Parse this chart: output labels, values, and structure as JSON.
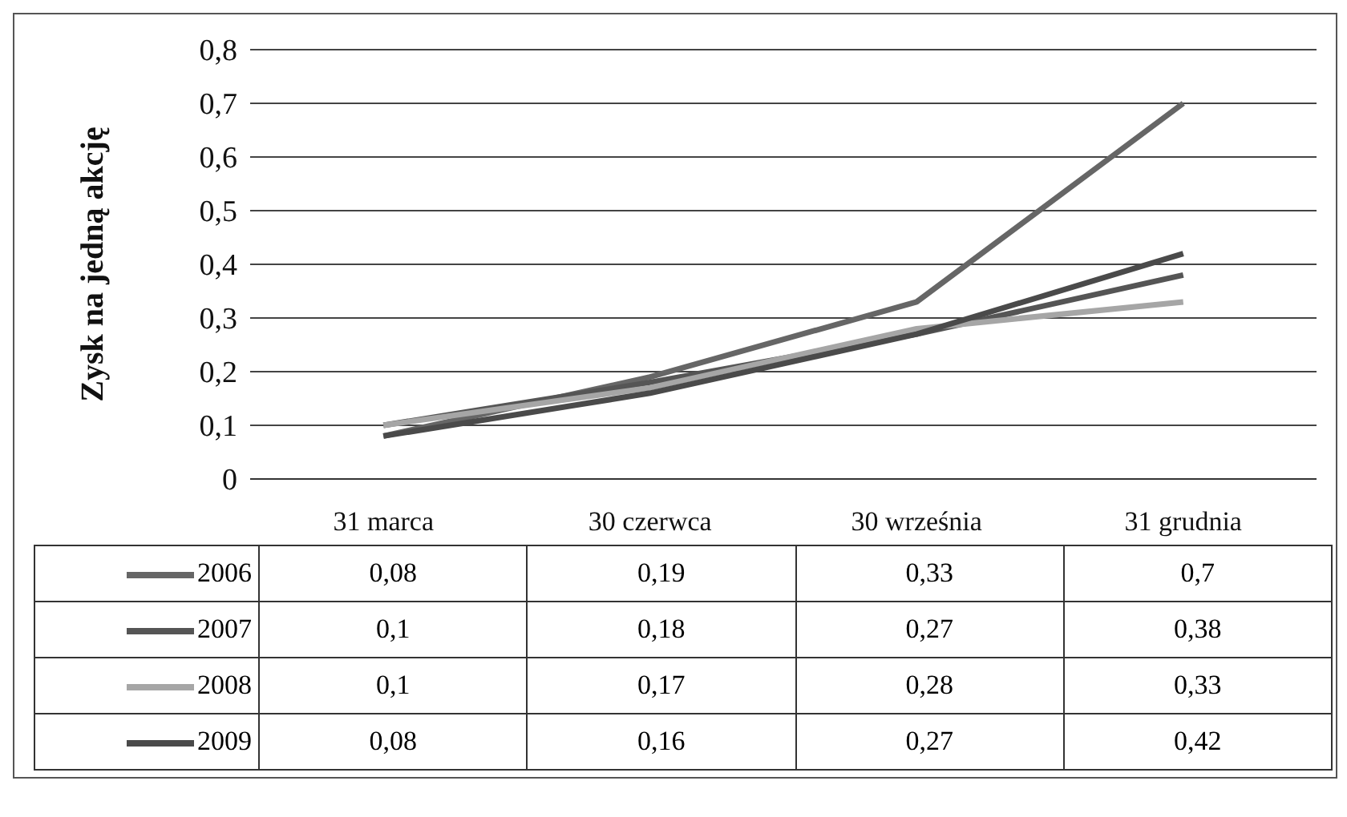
{
  "chart_data": {
    "type": "line",
    "ylabel": "Zysk na jedną akcję",
    "categories": [
      "31 marca",
      "30 czerwca",
      "30 września",
      "31 grudnia"
    ],
    "series": [
      {
        "name": "2006",
        "color": "#666666",
        "values": [
          0.08,
          0.19,
          0.33,
          0.7
        ],
        "value_labels": [
          "0,08",
          "0,19",
          "0,33",
          "0,7"
        ]
      },
      {
        "name": "2007",
        "color": "#555555",
        "values": [
          0.1,
          0.18,
          0.27,
          0.38
        ],
        "value_labels": [
          "0,1",
          "0,18",
          "0,27",
          "0,38"
        ]
      },
      {
        "name": "2008",
        "color": "#a6a6a6",
        "values": [
          0.1,
          0.17,
          0.28,
          0.33
        ],
        "value_labels": [
          "0,1",
          "0,17",
          "0,28",
          "0,33"
        ]
      },
      {
        "name": "2009",
        "color": "#4a4a4a",
        "values": [
          0.08,
          0.16,
          0.27,
          0.42
        ],
        "value_labels": [
          "0,08",
          "0,16",
          "0,27",
          "0,42"
        ]
      }
    ],
    "ylim": [
      0,
      0.8
    ],
    "yticks": [
      {
        "value": 0,
        "label": "0"
      },
      {
        "value": 0.1,
        "label": "0,1"
      },
      {
        "value": 0.2,
        "label": "0,2"
      },
      {
        "value": 0.3,
        "label": "0,3"
      },
      {
        "value": 0.4,
        "label": "0,4"
      },
      {
        "value": 0.5,
        "label": "0,5"
      },
      {
        "value": 0.6,
        "label": "0,6"
      },
      {
        "value": 0.7,
        "label": "0,7"
      },
      {
        "value": 0.8,
        "label": "0,8"
      }
    ],
    "grid": "y",
    "legend": "bottom",
    "marker": "none",
    "line_style": "solid"
  }
}
